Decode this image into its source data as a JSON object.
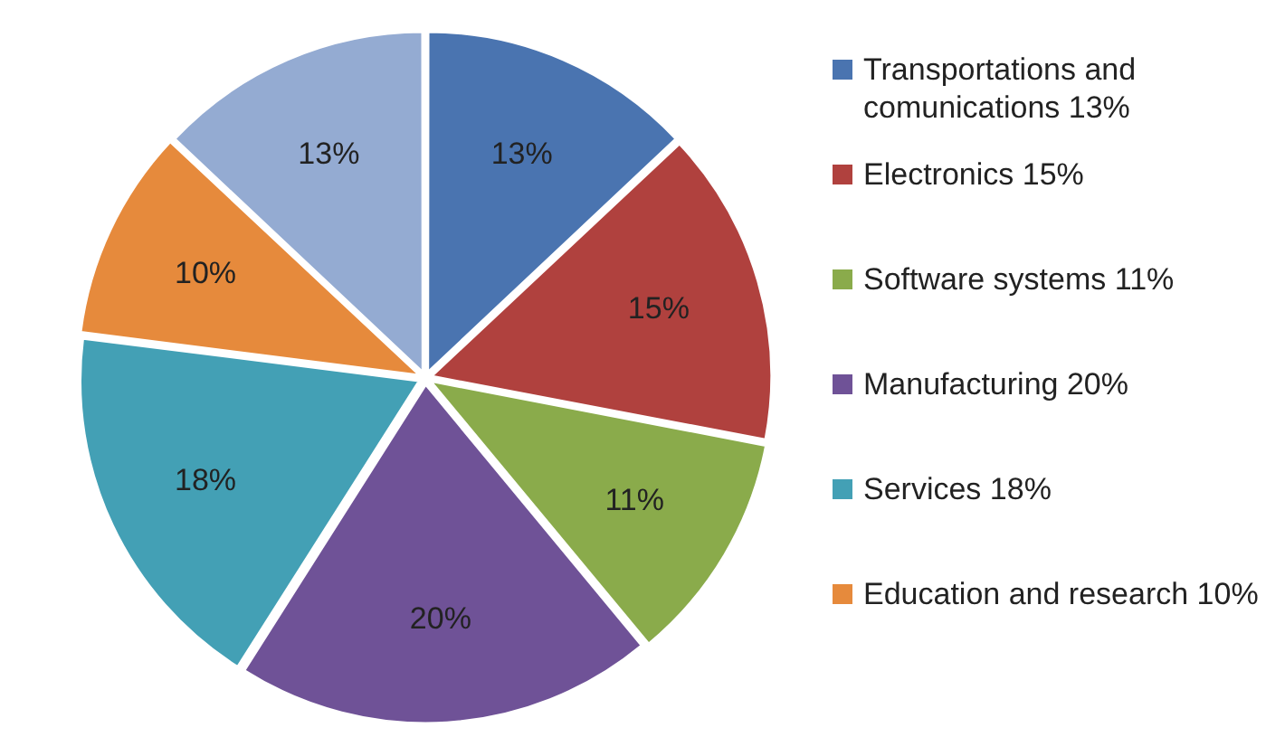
{
  "chart_data": {
    "type": "pie",
    "categories": [
      "Transportations and comunications 13%",
      "Electronics 15%",
      "Software systems 11%",
      "Manufacturing 20%",
      "Services 18%",
      "Education and research 10%",
      null
    ],
    "values": [
      13,
      15,
      11,
      20,
      18,
      10,
      13
    ],
    "colors": [
      "#4a74b0",
      "#b0413e",
      "#8aab4b",
      "#6f5297",
      "#43a0b5",
      "#e68a3c",
      "#94abd2"
    ],
    "value_labels": [
      "13%",
      "15%",
      "11%",
      "20%",
      "18%",
      "10%",
      "13%"
    ],
    "legend": "right"
  }
}
